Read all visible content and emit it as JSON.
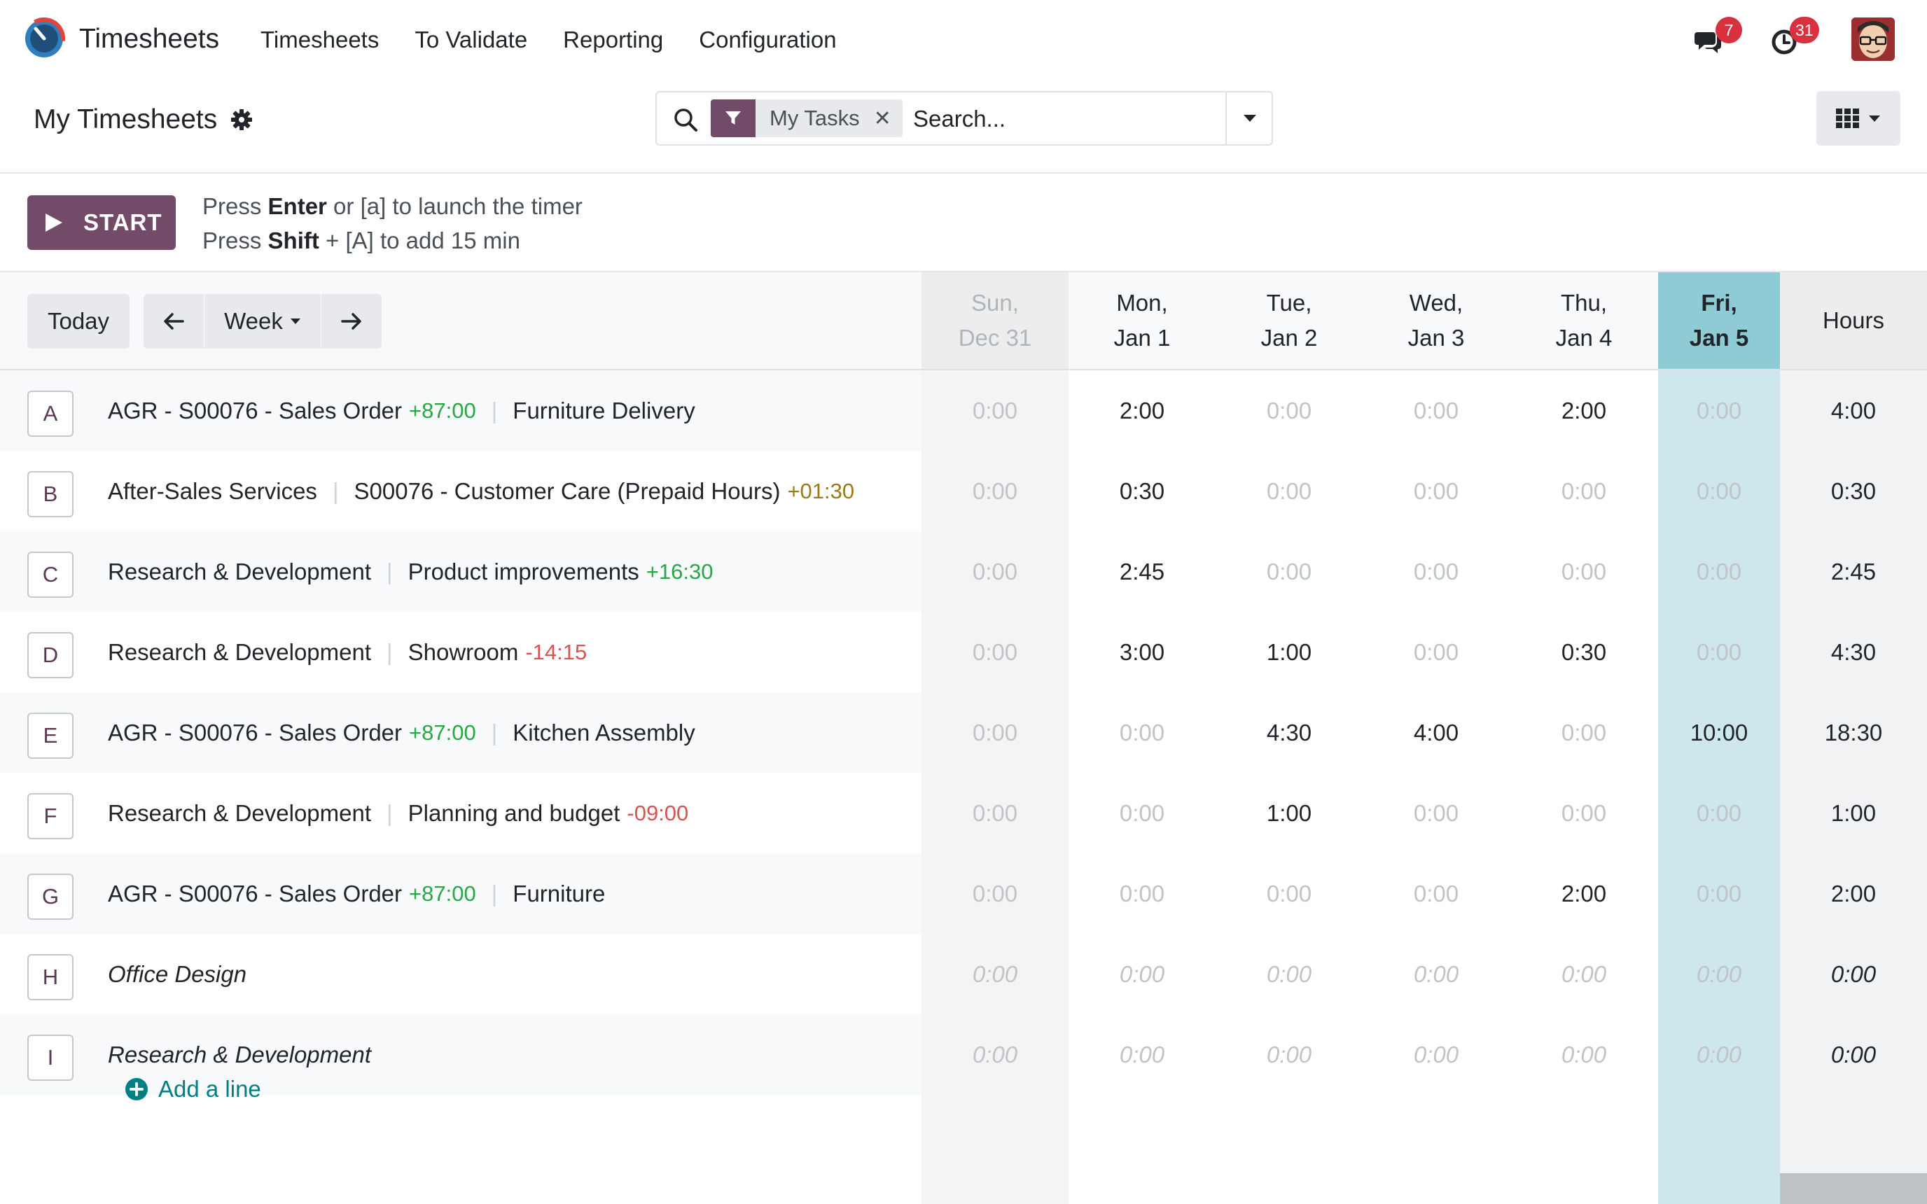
{
  "app": {
    "name": "Timesheets",
    "menu": [
      "Timesheets",
      "To Validate",
      "Reporting",
      "Configuration"
    ],
    "notifications": {
      "messages": "7",
      "activities": "31"
    }
  },
  "control": {
    "title": "My Timesheets",
    "facet": "My Tasks",
    "search_placeholder": "Search..."
  },
  "timer": {
    "start_label": "START",
    "hint1": {
      "pre": "Press ",
      "key": "Enter",
      "post": " or [a] to launch the timer"
    },
    "hint2": {
      "pre": "Press ",
      "key": "Shift",
      "post": " + [A] to add 15 min"
    }
  },
  "grid": {
    "today_label": "Today",
    "range_label": "Week",
    "columns": [
      {
        "l1": "Sun,",
        "l2": "Dec 31"
      },
      {
        "l1": "Mon,",
        "l2": "Jan 1"
      },
      {
        "l1": "Tue,",
        "l2": "Jan 2"
      },
      {
        "l1": "Wed,",
        "l2": "Jan 3"
      },
      {
        "l1": "Thu,",
        "l2": "Jan 4"
      },
      {
        "l1": "Fri,",
        "l2": "Jan 5"
      }
    ],
    "total_label": "Hours",
    "add_line": "Add a line",
    "rows": [
      {
        "key": "A",
        "p1": "AGR - S00076 - Sales Order",
        "p1r": "+87:00",
        "p1c": "pos",
        "p2": "Furniture Delivery",
        "p2r": "",
        "p2c": "",
        "italic": false,
        "cells": [
          "0:00",
          "2:00",
          "0:00",
          "0:00",
          "2:00",
          "0:00"
        ],
        "total": "4:00"
      },
      {
        "key": "B",
        "p1": "After-Sales Services",
        "p1r": "",
        "p1c": "",
        "p2": "S00076 - Customer Care (Prepaid Hours)",
        "p2r": "+01:30",
        "p2c": "warn",
        "italic": false,
        "cells": [
          "0:00",
          "0:30",
          "0:00",
          "0:00",
          "0:00",
          "0:00"
        ],
        "total": "0:30"
      },
      {
        "key": "C",
        "p1": "Research & Development",
        "p1r": "",
        "p1c": "",
        "p2": "Product improvements",
        "p2r": "+16:30",
        "p2c": "pos",
        "italic": false,
        "cells": [
          "0:00",
          "2:45",
          "0:00",
          "0:00",
          "0:00",
          "0:00"
        ],
        "total": "2:45"
      },
      {
        "key": "D",
        "p1": "Research & Development",
        "p1r": "",
        "p1c": "",
        "p2": "Showroom",
        "p2r": "-14:15",
        "p2c": "neg",
        "italic": false,
        "cells": [
          "0:00",
          "3:00",
          "1:00",
          "0:00",
          "0:30",
          "0:00"
        ],
        "total": "4:30"
      },
      {
        "key": "E",
        "p1": "AGR - S00076 - Sales Order",
        "p1r": "+87:00",
        "p1c": "pos",
        "p2": "Kitchen Assembly",
        "p2r": "",
        "p2c": "",
        "italic": false,
        "cells": [
          "0:00",
          "0:00",
          "4:30",
          "4:00",
          "0:00",
          "10:00"
        ],
        "total": "18:30"
      },
      {
        "key": "F",
        "p1": "Research & Development",
        "p1r": "",
        "p1c": "",
        "p2": "Planning and budget",
        "p2r": "-09:00",
        "p2c": "neg",
        "italic": false,
        "cells": [
          "0:00",
          "0:00",
          "1:00",
          "0:00",
          "0:00",
          "0:00"
        ],
        "total": "1:00"
      },
      {
        "key": "G",
        "p1": "AGR - S00076 - Sales Order",
        "p1r": "+87:00",
        "p1c": "pos",
        "p2": "Furniture",
        "p2r": "",
        "p2c": "",
        "italic": false,
        "cells": [
          "0:00",
          "0:00",
          "0:00",
          "0:00",
          "2:00",
          "0:00"
        ],
        "total": "2:00"
      },
      {
        "key": "H",
        "p1": "Office Design",
        "p1r": "",
        "p1c": "",
        "p2": "",
        "p2r": "",
        "p2c": "",
        "italic": true,
        "cells": [
          "0:00",
          "0:00",
          "0:00",
          "0:00",
          "0:00",
          "0:00"
        ],
        "total": "0:00"
      },
      {
        "key": "I",
        "p1": "Research & Development",
        "p1r": "",
        "p1c": "",
        "p2": "",
        "p2r": "",
        "p2c": "",
        "italic": true,
        "cells": [
          "0:00",
          "0:00",
          "0:00",
          "0:00",
          "0:00",
          "0:00"
        ],
        "total": "0:00"
      }
    ]
  },
  "colors": {
    "primary": "#714b67",
    "today": "#8fcbd5",
    "link": "#017e84",
    "badge": "#d9323f"
  }
}
